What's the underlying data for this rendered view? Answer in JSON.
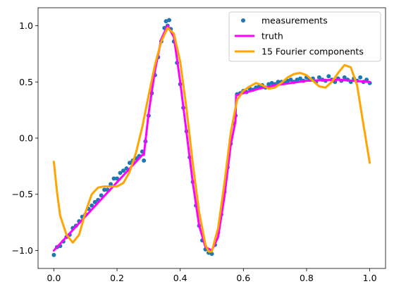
{
  "chart_data": {
    "type": "scatter",
    "title": "",
    "xlabel": "",
    "ylabel": "",
    "xlim": [
      -0.05,
      1.05
    ],
    "ylim": [
      -1.16,
      1.16
    ],
    "x_ticks": [
      0.0,
      0.2,
      0.4,
      0.6,
      0.8,
      1.0
    ],
    "x_tick_labels": [
      "0.0",
      "0.2",
      "0.4",
      "0.6",
      "0.8",
      "1.0"
    ],
    "y_ticks": [
      -1.0,
      -0.5,
      0.0,
      0.5,
      1.0
    ],
    "y_tick_labels": [
      "−1.0",
      "−0.5",
      "0.0",
      "0.5",
      "1.0"
    ],
    "grid": false,
    "legend_position": "top-right",
    "series": [
      {
        "name": "measurements",
        "kind": "scatter",
        "color": "#1f77b4",
        "points": [
          [
            0.0,
            -1.04
          ],
          [
            0.01,
            -0.97
          ],
          [
            0.02,
            -0.96
          ],
          [
            0.03,
            -0.92
          ],
          [
            0.04,
            -0.88
          ],
          [
            0.05,
            -0.86
          ],
          [
            0.06,
            -0.8
          ],
          [
            0.07,
            -0.78
          ],
          [
            0.08,
            -0.74
          ],
          [
            0.09,
            -0.7
          ],
          [
            0.1,
            -0.68
          ],
          [
            0.11,
            -0.63
          ],
          [
            0.12,
            -0.6
          ],
          [
            0.13,
            -0.57
          ],
          [
            0.14,
            -0.55
          ],
          [
            0.15,
            -0.51
          ],
          [
            0.16,
            -0.46
          ],
          [
            0.17,
            -0.46
          ],
          [
            0.18,
            -0.41
          ],
          [
            0.19,
            -0.36
          ],
          [
            0.2,
            -0.36
          ],
          [
            0.21,
            -0.31
          ],
          [
            0.22,
            -0.29
          ],
          [
            0.23,
            -0.27
          ],
          [
            0.24,
            -0.22
          ],
          [
            0.25,
            -0.2
          ],
          [
            0.26,
            -0.18
          ],
          [
            0.27,
            -0.16
          ],
          [
            0.28,
            -0.12
          ],
          [
            0.285,
            -0.2
          ],
          [
            0.29,
            -0.03
          ],
          [
            0.3,
            0.2
          ],
          [
            0.31,
            0.4
          ],
          [
            0.32,
            0.56
          ],
          [
            0.33,
            0.72
          ],
          [
            0.34,
            0.86
          ],
          [
            0.35,
            0.98
          ],
          [
            0.355,
            1.04
          ],
          [
            0.36,
            1.0
          ],
          [
            0.365,
            1.05
          ],
          [
            0.37,
            0.97
          ],
          [
            0.38,
            0.86
          ],
          [
            0.39,
            0.67
          ],
          [
            0.4,
            0.48
          ],
          [
            0.41,
            0.27
          ],
          [
            0.42,
            0.06
          ],
          [
            0.43,
            -0.17
          ],
          [
            0.44,
            -0.39
          ],
          [
            0.45,
            -0.6
          ],
          [
            0.46,
            -0.78
          ],
          [
            0.47,
            -0.91
          ],
          [
            0.48,
            -0.99
          ],
          [
            0.49,
            -1.02
          ],
          [
            0.5,
            -1.03
          ],
          [
            0.51,
            -0.95
          ],
          [
            0.52,
            -0.84
          ],
          [
            0.53,
            -0.68
          ],
          [
            0.54,
            -0.48
          ],
          [
            0.55,
            -0.26
          ],
          [
            0.56,
            -0.05
          ],
          [
            0.57,
            0.13
          ],
          [
            0.575,
            0.2
          ],
          [
            0.58,
            0.39
          ],
          [
            0.59,
            0.4
          ],
          [
            0.6,
            0.42
          ],
          [
            0.61,
            0.41
          ],
          [
            0.62,
            0.44
          ],
          [
            0.63,
            0.43
          ],
          [
            0.64,
            0.45
          ],
          [
            0.65,
            0.46
          ],
          [
            0.66,
            0.47
          ],
          [
            0.67,
            0.45
          ],
          [
            0.68,
            0.48
          ],
          [
            0.69,
            0.49
          ],
          [
            0.7,
            0.48
          ],
          [
            0.71,
            0.5
          ],
          [
            0.72,
            0.5
          ],
          [
            0.73,
            0.49
          ],
          [
            0.74,
            0.51
          ],
          [
            0.75,
            0.52
          ],
          [
            0.76,
            0.5
          ],
          [
            0.77,
            0.52
          ],
          [
            0.78,
            0.53
          ],
          [
            0.79,
            0.51
          ],
          [
            0.8,
            0.54
          ],
          [
            0.81,
            0.52
          ],
          [
            0.82,
            0.53
          ],
          [
            0.83,
            0.5
          ],
          [
            0.84,
            0.54
          ],
          [
            0.85,
            0.52
          ],
          [
            0.86,
            0.51
          ],
          [
            0.87,
            0.55
          ],
          [
            0.88,
            0.52
          ],
          [
            0.89,
            0.5
          ],
          [
            0.9,
            0.53
          ],
          [
            0.91,
            0.51
          ],
          [
            0.92,
            0.54
          ],
          [
            0.93,
            0.52
          ],
          [
            0.94,
            0.5
          ],
          [
            0.95,
            0.53
          ],
          [
            0.96,
            0.51
          ],
          [
            0.97,
            0.54
          ],
          [
            0.98,
            0.5
          ],
          [
            0.99,
            0.52
          ],
          [
            1.0,
            0.49
          ]
        ]
      },
      {
        "name": "truth",
        "kind": "line",
        "color": "#ff00ff",
        "points": [
          [
            0.0,
            -1.0
          ],
          [
            0.28,
            -0.15
          ],
          [
            0.285,
            -0.15
          ],
          [
            0.3,
            0.22
          ],
          [
            0.32,
            0.6
          ],
          [
            0.34,
            0.88
          ],
          [
            0.36,
            1.0
          ],
          [
            0.38,
            0.9
          ],
          [
            0.4,
            0.5
          ],
          [
            0.42,
            0.05
          ],
          [
            0.44,
            -0.4
          ],
          [
            0.46,
            -0.78
          ],
          [
            0.48,
            -0.97
          ],
          [
            0.5,
            -1.0
          ],
          [
            0.52,
            -0.88
          ],
          [
            0.54,
            -0.52
          ],
          [
            0.56,
            -0.06
          ],
          [
            0.575,
            0.15
          ],
          [
            0.577,
            0.38
          ],
          [
            0.6,
            0.4
          ],
          [
            0.65,
            0.44
          ],
          [
            0.7,
            0.47
          ],
          [
            0.8,
            0.51
          ],
          [
            0.9,
            0.52
          ],
          [
            1.0,
            0.5
          ]
        ]
      },
      {
        "name": "15 Fourier components",
        "kind": "line",
        "color": "#ffa500",
        "points": [
          [
            0.0,
            -0.21
          ],
          [
            0.01,
            -0.48
          ],
          [
            0.02,
            -0.69
          ],
          [
            0.04,
            -0.86
          ],
          [
            0.06,
            -0.93
          ],
          [
            0.08,
            -0.86
          ],
          [
            0.1,
            -0.66
          ],
          [
            0.12,
            -0.5
          ],
          [
            0.14,
            -0.44
          ],
          [
            0.16,
            -0.43
          ],
          [
            0.18,
            -0.43
          ],
          [
            0.2,
            -0.43
          ],
          [
            0.22,
            -0.4
          ],
          [
            0.24,
            -0.3
          ],
          [
            0.26,
            -0.13
          ],
          [
            0.28,
            0.1
          ],
          [
            0.3,
            0.38
          ],
          [
            0.32,
            0.65
          ],
          [
            0.34,
            0.86
          ],
          [
            0.36,
            0.98
          ],
          [
            0.38,
            0.93
          ],
          [
            0.4,
            0.68
          ],
          [
            0.42,
            0.26
          ],
          [
            0.44,
            -0.23
          ],
          [
            0.46,
            -0.66
          ],
          [
            0.48,
            -0.95
          ],
          [
            0.49,
            -1.01
          ],
          [
            0.5,
            -1.01
          ],
          [
            0.52,
            -0.8
          ],
          [
            0.54,
            -0.4
          ],
          [
            0.56,
            0.05
          ],
          [
            0.58,
            0.34
          ],
          [
            0.6,
            0.42
          ],
          [
            0.62,
            0.46
          ],
          [
            0.64,
            0.49
          ],
          [
            0.66,
            0.47
          ],
          [
            0.68,
            0.44
          ],
          [
            0.7,
            0.45
          ],
          [
            0.72,
            0.49
          ],
          [
            0.74,
            0.54
          ],
          [
            0.76,
            0.57
          ],
          [
            0.78,
            0.58
          ],
          [
            0.8,
            0.56
          ],
          [
            0.82,
            0.51
          ],
          [
            0.84,
            0.46
          ],
          [
            0.86,
            0.45
          ],
          [
            0.88,
            0.5
          ],
          [
            0.9,
            0.58
          ],
          [
            0.92,
            0.65
          ],
          [
            0.94,
            0.63
          ],
          [
            0.96,
            0.47
          ],
          [
            0.98,
            0.12
          ],
          [
            1.0,
            -0.22
          ]
        ]
      }
    ]
  }
}
